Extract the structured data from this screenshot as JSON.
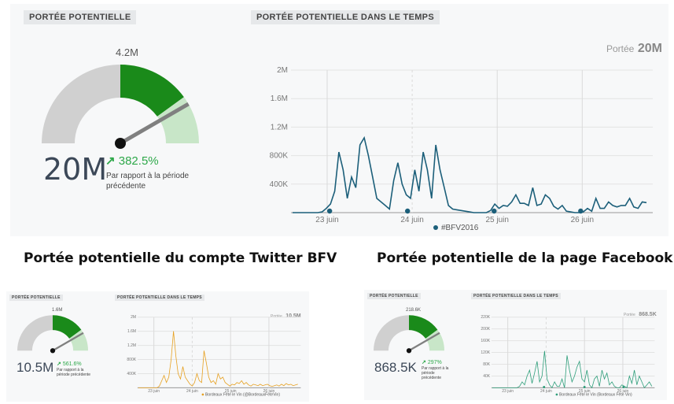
{
  "main": {
    "reach_tag": "PORTÉE POTENTIELLE",
    "time_tag": "PORTÉE POTENTIELLE DANS LE TEMPS",
    "gauge_target": "4.2M",
    "gauge_fraction": 0.6,
    "big_value": "20M",
    "change": "382.5%",
    "compare_line1": "Par rapport à la période",
    "compare_line2": "précédente",
    "reach_label": "Portée",
    "reach_total": "20M",
    "chart_data": {
      "type": "line",
      "y_ticks": [
        "400K",
        "800K",
        "1.2M",
        "1.6M",
        "2M"
      ],
      "x_ticks": [
        "23 juin",
        "24 juin",
        "25 juin",
        "26 juin"
      ],
      "ylim": [
        0,
        2000000
      ],
      "legend": "#BFV2016",
      "color": "#1c5f7a",
      "values": [
        0,
        0,
        0,
        0,
        0,
        0,
        0,
        10000,
        60000,
        120000,
        300000,
        850000,
        600000,
        200000,
        500000,
        350000,
        950000,
        1050000,
        800000,
        500000,
        200000,
        150000,
        100000,
        50000,
        450000,
        700000,
        400000,
        250000,
        200000,
        600000,
        300000,
        850000,
        600000,
        200000,
        950000,
        600000,
        350000,
        100000,
        50000,
        40000,
        30000,
        20000,
        10000,
        0,
        0,
        0,
        0,
        30000,
        120000,
        60000,
        100000,
        90000,
        150000,
        250000,
        130000,
        130000,
        100000,
        350000,
        100000,
        120000,
        250000,
        200000,
        90000,
        50000,
        100000,
        20000,
        10000,
        0,
        0,
        10000,
        60000,
        20000,
        200000,
        60000,
        60000,
        150000,
        100000,
        80000,
        100000,
        100000,
        200000,
        80000,
        60000,
        150000,
        140000
      ],
      "markers": [
        0.08,
        2.6,
        5.4,
        8.2
      ]
    }
  },
  "captions": {
    "twitter": "Portée potentielle du compte Twitter BFV",
    "facebook": "Portée potentielle de la page Facebook BFV"
  },
  "twitter": {
    "reach_tag": "PORTÉE POTENTIELLE",
    "time_tag": "PORTÉE POTENTIELLE DANS LE TEMPS",
    "gauge_target": "1.6M",
    "gauge_fraction": 0.65,
    "big_value": "10.5M",
    "change": "561.6%",
    "compare_line1": "Par rapport à la",
    "compare_line2": "période précédente",
    "reach_label": "Portée",
    "reach_total": "10.5M",
    "chart_data": {
      "type": "line",
      "y_ticks": [
        "400K",
        "800K",
        "1.2M",
        "1.6M",
        "2M"
      ],
      "x_ticks": [
        "23 juin",
        "24 juin",
        "25 juin",
        "26 juin"
      ],
      "ylim": [
        0,
        2000000
      ],
      "legend": "Bordeaux Fête le Vin (@BordeauxFeteVin)",
      "color": "#e6a020",
      "values": [
        0,
        0,
        0,
        0,
        0,
        0,
        0,
        0,
        0,
        50000,
        200000,
        350000,
        150000,
        300000,
        800000,
        1600000,
        900000,
        400000,
        250000,
        600000,
        300000,
        200000,
        100000,
        50000,
        150000,
        400000,
        200000,
        150000,
        1050000,
        700000,
        300000,
        150000,
        200000,
        100000,
        400000,
        250000,
        300000,
        150000,
        100000,
        50000,
        100000,
        80000,
        150000,
        120000,
        200000,
        100000,
        150000,
        80000,
        50000,
        100000,
        80000,
        60000,
        100000,
        60000,
        80000,
        100000,
        60000,
        40000,
        60000,
        80000,
        50000,
        100000,
        60000,
        120000,
        80000,
        100000,
        60000,
        80000,
        100000
      ],
      "markers": []
    }
  },
  "facebook": {
    "reach_tag": "PORTÉE POTENTIELLE",
    "time_tag": "PORTÉE POTENTIELLE DANS LE TEMPS",
    "gauge_target": "218.6K",
    "gauge_fraction": 0.7,
    "big_value": "868.5K",
    "change": "297%",
    "compare_line1": "Par rapport à la",
    "compare_line2": "période",
    "compare_line3": "précédente",
    "reach_label": "Portée",
    "reach_total": "868.5K",
    "chart_data": {
      "type": "line",
      "y_ticks": [
        "40K",
        "80K",
        "120K",
        "160K",
        "200K",
        "220K"
      ],
      "x_ticks": [
        "23 juin",
        "24 juin",
        "25 juin",
        "26 juin"
      ],
      "ylim": [
        0,
        240000
      ],
      "legend": "Bordeaux Fête le Vin (Bordeaux Fête Vin)",
      "color": "#2e9e7a",
      "values": [
        0,
        0,
        0,
        0,
        0,
        0,
        0,
        0,
        0,
        0,
        0,
        5000,
        20000,
        10000,
        40000,
        60000,
        15000,
        50000,
        90000,
        20000,
        40000,
        125000,
        30000,
        10000,
        0,
        20000,
        5000,
        5000,
        30000,
        0,
        110000,
        60000,
        20000,
        40000,
        70000,
        90000,
        30000,
        20000,
        60000,
        10000,
        0,
        30000,
        40000,
        5000,
        60000,
        30000,
        50000,
        10000,
        20000,
        5000,
        0,
        0,
        10000,
        5000,
        0,
        40000,
        15000,
        60000,
        10000,
        40000,
        20000,
        0,
        10000,
        20000,
        5000
      ],
      "markers": [
        2.6,
        5.5,
        8.3
      ]
    }
  },
  "colors": {
    "gauge_green": "#1a8a1a",
    "gauge_light": "#c8e6c8",
    "gauge_grey": "#d0d0d0",
    "needle": "#808080",
    "increase_arrow": "#2ea84a"
  }
}
